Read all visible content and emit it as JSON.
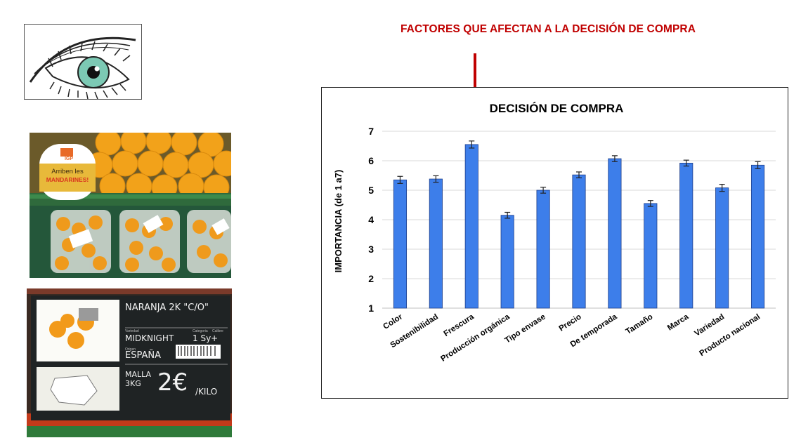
{
  "headline": "FACTORES QUE AFECTAN A LA DECISIÓN DE COMPRA",
  "photo_sign": {
    "badge_brand": "IGP",
    "badge_line1": "Arriben les",
    "badge_line2": "MANDARINES!"
  },
  "price_sign": {
    "product": "NARANJA 2K \"C/O\"",
    "variety": "MIDKNIGHT",
    "category": "1 Sy+",
    "origin": "ESPAÑA",
    "pack": "MALLA 3KG",
    "price": "2€",
    "unit": "/KILO",
    "lbl_variedad": "Variedad",
    "lbl_categoria": "Categoria",
    "lbl_calibre": "Calibre",
    "lbl_origen": "Origen"
  },
  "colors": {
    "headline": "#c00000",
    "arrow": "#c00000",
    "bar": "#3d7eea",
    "bar_edge": "#1f3f8a",
    "grid": "#d9d9d9"
  },
  "chart_data": {
    "type": "bar",
    "title": "DECISIÓN DE COMPRA",
    "ylabel": "IMPORTANCIA  (de 1 a7)",
    "xlabel": "",
    "ylim": [
      1,
      7
    ],
    "yticks": [
      1,
      2,
      3,
      4,
      5,
      6,
      7
    ],
    "grid": true,
    "categories": [
      "Color",
      "Sostenibilidad",
      "Frescura",
      "Producción orgánica",
      "Tipo envase",
      "Precio",
      "De temporada",
      "Tamaño",
      "Marca",
      "Variedad",
      "Producto nacional"
    ],
    "values": [
      5.35,
      5.38,
      6.55,
      4.15,
      5.0,
      5.52,
      6.07,
      4.55,
      5.92,
      5.08,
      5.85
    ],
    "errors": [
      0.12,
      0.11,
      0.12,
      0.1,
      0.1,
      0.1,
      0.1,
      0.1,
      0.1,
      0.12,
      0.12
    ]
  }
}
